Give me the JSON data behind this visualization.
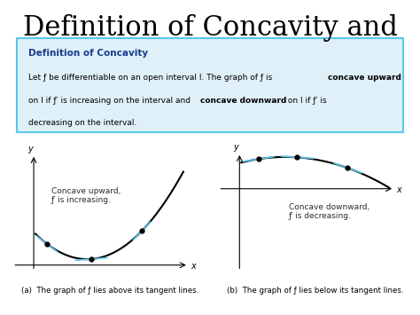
{
  "title": "Definition of Concavity and",
  "title_fontsize": 22,
  "box_title": "Definition of Concavity",
  "box_text_line1": "Let ƒ be differentiable on an open interval I. The graph of ƒ is ",
  "box_bold1": "concave upward",
  "box_text_line2": "on I if ƒ′ is increasing on the interval and ",
  "box_bold2": "concave downward",
  "box_text_line3": " on I if ƒ′ is",
  "box_text_line4": "decreasing on the interval.",
  "label_a": "(a)  The graph of ƒ lies above its tangent lines.",
  "label_b": "(b)  The graph of ƒ lies below its tangent lines.",
  "concave_up_label": "Concave upward,\nƒ′ is increasing.",
  "concave_down_label": "Concave downward,\nƒ′ is decreasing.",
  "curve_color": "#000000",
  "tangent_color": "#5bc8e8",
  "dot_color": "#000000",
  "box_border_color": "#5bc8e8",
  "box_bg_color": "#dff0f8",
  "box_title_color": "#1a3a8c",
  "background_color": "#ffffff",
  "text_color": "#2d2d2d"
}
